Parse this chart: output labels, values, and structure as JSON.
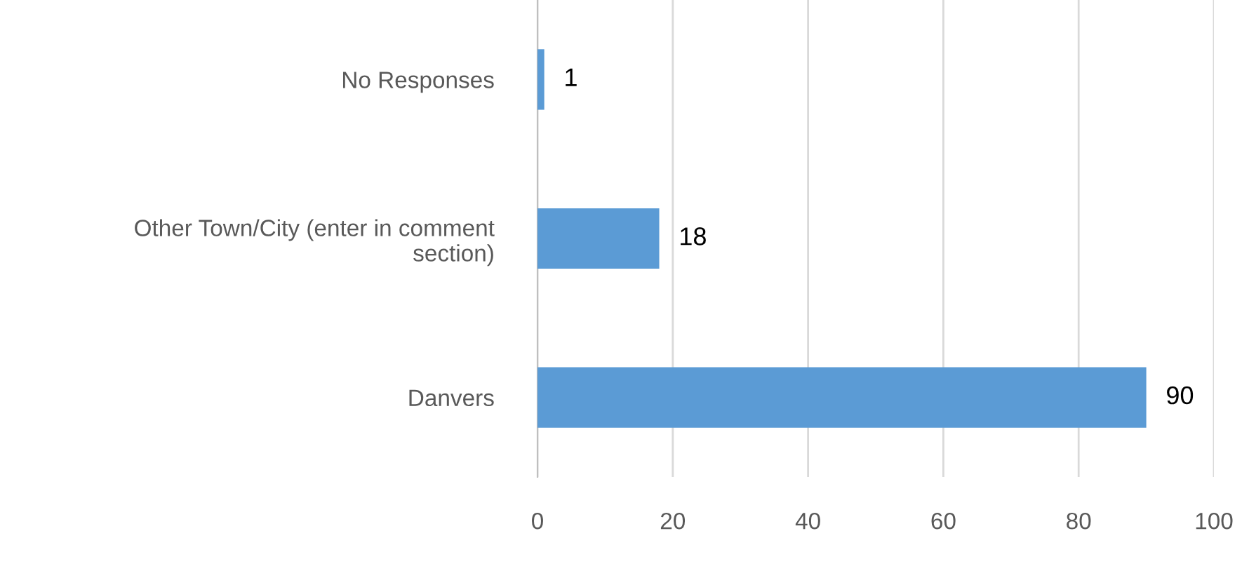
{
  "chart_data": {
    "type": "bar",
    "orientation": "horizontal",
    "categories": [
      "No Responses",
      "Other Town/City (enter in comment\nsection)",
      "Danvers"
    ],
    "values": [
      1,
      18,
      90
    ],
    "color": "#5b9bd5",
    "xlim": [
      0,
      100
    ],
    "xticks": [
      0,
      20,
      40,
      60,
      80,
      100
    ],
    "grid": "x",
    "data_labels": true
  }
}
